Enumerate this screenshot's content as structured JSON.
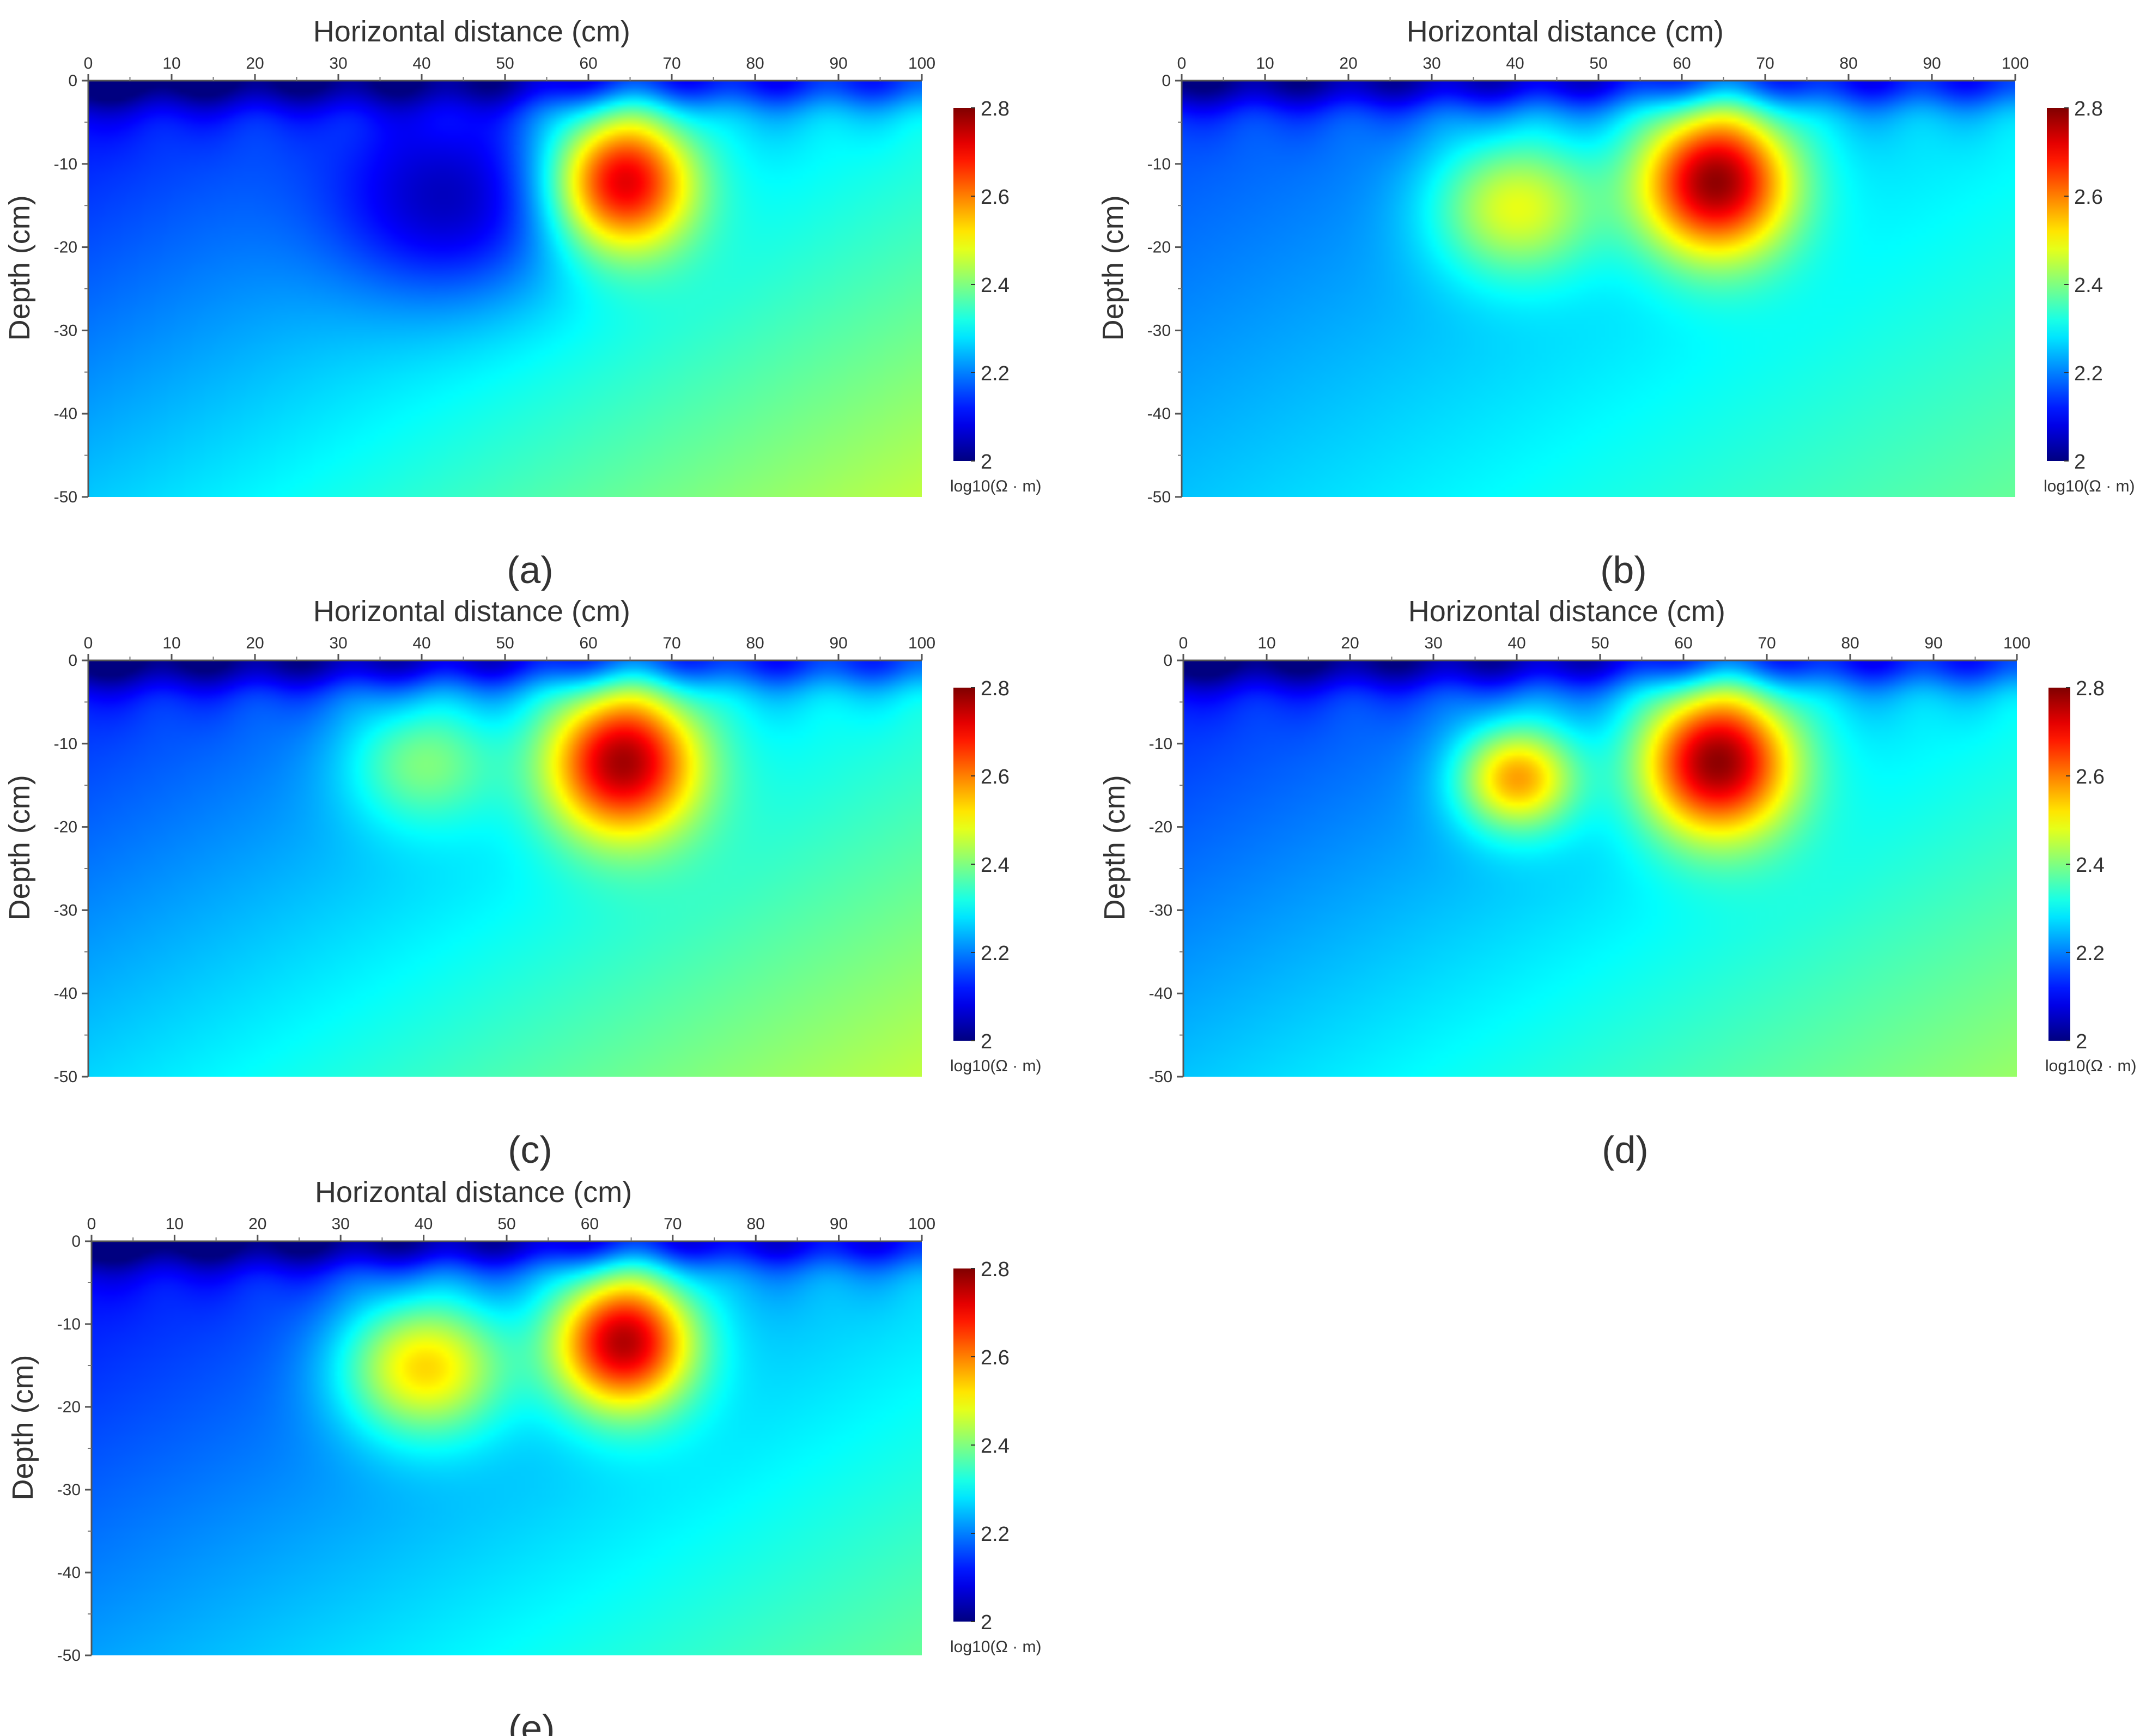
{
  "chart_data": [
    {
      "type": "heatmap",
      "panel_label": "(a)",
      "xlabel": "Horizontal distance (cm)",
      "ylabel": "Depth (cm)",
      "xlim": [
        0,
        100
      ],
      "ylim": [
        -50,
        0
      ],
      "x_ticks": [
        0,
        10,
        20,
        30,
        40,
        50,
        60,
        70,
        80,
        90,
        100
      ],
      "y_ticks": [
        0,
        -10,
        -20,
        -30,
        -40,
        -50
      ],
      "colorbar": {
        "range": [
          2,
          2.8
        ],
        "ticks": [
          2,
          2.2,
          2.4,
          2.6,
          2.8
        ],
        "unit": "log10(Ω · m)",
        "colormap": "jet"
      },
      "background_level": 2.3,
      "trend": {
        "left_top": 2.1,
        "right_bottom": 2.45
      },
      "anomalies": [
        {
          "x": 64,
          "depth": -12,
          "peak": 2.78,
          "sx": 6,
          "sy": 6
        },
        {
          "x": 44,
          "depth": -15,
          "peak": 2.12,
          "sx": 10,
          "sy": 8
        }
      ]
    },
    {
      "type": "heatmap",
      "panel_label": "(b)",
      "xlabel": "Horizontal distance (cm)",
      "ylabel": "Depth (cm)",
      "xlim": [
        0,
        100
      ],
      "ylim": [
        -50,
        0
      ],
      "x_ticks": [
        0,
        10,
        20,
        30,
        40,
        50,
        60,
        70,
        80,
        90,
        100
      ],
      "y_ticks": [
        0,
        -10,
        -20,
        -30,
        -40,
        -50
      ],
      "colorbar": {
        "range": [
          2,
          2.8
        ],
        "ticks": [
          2,
          2.2,
          2.4,
          2.6,
          2.8
        ],
        "unit": "log10(Ω · m)",
        "colormap": "jet"
      },
      "background_level": 2.25,
      "trend": {
        "left_top": 2.15,
        "right_bottom": 2.38
      },
      "anomalies": [
        {
          "x": 64,
          "depth": -12,
          "peak": 2.78,
          "sx": 6.5,
          "sy": 6.5
        },
        {
          "x": 40,
          "depth": -15,
          "peak": 2.5,
          "sx": 7,
          "sy": 6
        }
      ]
    },
    {
      "type": "heatmap",
      "panel_label": "(c)",
      "xlabel": "Horizontal distance (cm)",
      "ylabel": "Depth (cm)",
      "xlim": [
        0,
        100
      ],
      "ylim": [
        -50,
        0
      ],
      "x_ticks": [
        0,
        10,
        20,
        30,
        40,
        50,
        60,
        70,
        80,
        90,
        100
      ],
      "y_ticks": [
        0,
        -10,
        -20,
        -30,
        -40,
        -50
      ],
      "colorbar": {
        "range": [
          2,
          2.8
        ],
        "ticks": [
          2,
          2.2,
          2.4,
          2.6,
          2.8
        ],
        "unit": "log10(Ω · m)",
        "colormap": "jet"
      },
      "background_level": 2.28,
      "trend": {
        "left_top": 2.12,
        "right_bottom": 2.45
      },
      "anomalies": [
        {
          "x": 64,
          "depth": -12,
          "peak": 2.78,
          "sx": 6.5,
          "sy": 6.5
        },
        {
          "x": 40,
          "depth": -12,
          "peak": 2.45,
          "sx": 6.5,
          "sy": 5.5
        }
      ]
    },
    {
      "type": "heatmap",
      "panel_label": "(d)",
      "xlabel": "Horizontal distance (cm)",
      "ylabel": "Depth (cm)",
      "xlim": [
        0,
        100
      ],
      "ylim": [
        -50,
        0
      ],
      "x_ticks": [
        0,
        10,
        20,
        30,
        40,
        50,
        60,
        70,
        80,
        90,
        100
      ],
      "y_ticks": [
        0,
        -10,
        -20,
        -30,
        -40,
        -50
      ],
      "colorbar": {
        "range": [
          2,
          2.8
        ],
        "ticks": [
          2,
          2.2,
          2.4,
          2.6,
          2.8
        ],
        "unit": "log10(Ω · m)",
        "colormap": "jet"
      },
      "background_level": 2.25,
      "trend": {
        "left_top": 2.12,
        "right_bottom": 2.42
      },
      "anomalies": [
        {
          "x": 64,
          "depth": -12,
          "peak": 2.78,
          "sx": 6.5,
          "sy": 6.5
        },
        {
          "x": 40,
          "depth": -14,
          "peak": 2.6,
          "sx": 5,
          "sy": 4.5
        }
      ]
    },
    {
      "type": "heatmap",
      "panel_label": "(e)",
      "xlabel": "Horizontal distance (cm)",
      "ylabel": "Depth (cm)",
      "xlim": [
        0,
        100
      ],
      "ylim": [
        -50,
        0
      ],
      "x_ticks": [
        0,
        10,
        20,
        30,
        40,
        50,
        60,
        70,
        80,
        90,
        100
      ],
      "y_ticks": [
        0,
        -10,
        -20,
        -30,
        -40,
        -50
      ],
      "colorbar": {
        "range": [
          2,
          2.8
        ],
        "ticks": [
          2,
          2.2,
          2.4,
          2.6,
          2.8
        ],
        "unit": "log10(Ω · m)",
        "colormap": "jet"
      },
      "background_level": 2.22,
      "trend": {
        "left_top": 2.1,
        "right_bottom": 2.38
      },
      "anomalies": [
        {
          "x": 64,
          "depth": -12,
          "peak": 2.75,
          "sx": 6,
          "sy": 6
        },
        {
          "x": 40,
          "depth": -15,
          "peak": 2.55,
          "sx": 7,
          "sy": 6
        }
      ]
    }
  ]
}
